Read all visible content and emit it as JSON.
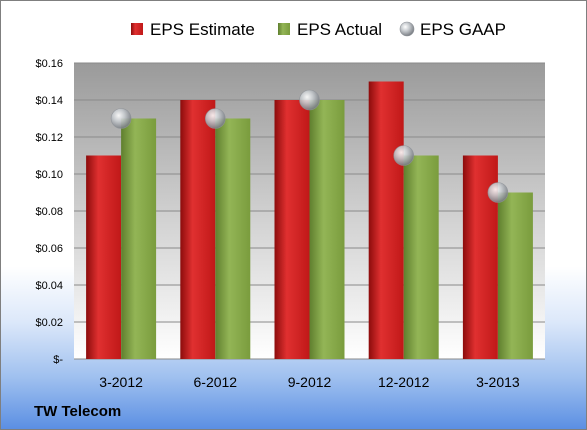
{
  "company": "TW Telecom",
  "chart_data": {
    "type": "bar",
    "categories": [
      "3-2012",
      "6-2012",
      "9-2012",
      "12-2012",
      "3-2013"
    ],
    "series": [
      {
        "name": "EPS Estimate",
        "type": "bar",
        "color": "#d42020",
        "values": [
          0.11,
          0.14,
          0.14,
          0.15,
          0.11
        ]
      },
      {
        "name": "EPS Actual",
        "type": "bar",
        "color": "#86ab47",
        "values": [
          0.13,
          0.13,
          0.14,
          0.11,
          0.09
        ]
      },
      {
        "name": "EPS GAAP",
        "type": "scatter",
        "color": "#b4b8bc",
        "values": [
          0.13,
          0.13,
          0.14,
          0.11,
          0.09
        ]
      }
    ],
    "ylim": [
      0,
      0.16
    ],
    "yticks": [
      0,
      0.02,
      0.04,
      0.06,
      0.08,
      0.1,
      0.12,
      0.14,
      0.16
    ],
    "ytick_labels": [
      "$-",
      "$0.02",
      "$0.04",
      "$0.06",
      "$0.08",
      "$0.10",
      "$0.12",
      "$0.14",
      "$0.16"
    ],
    "grid": true,
    "legend": "top"
  }
}
